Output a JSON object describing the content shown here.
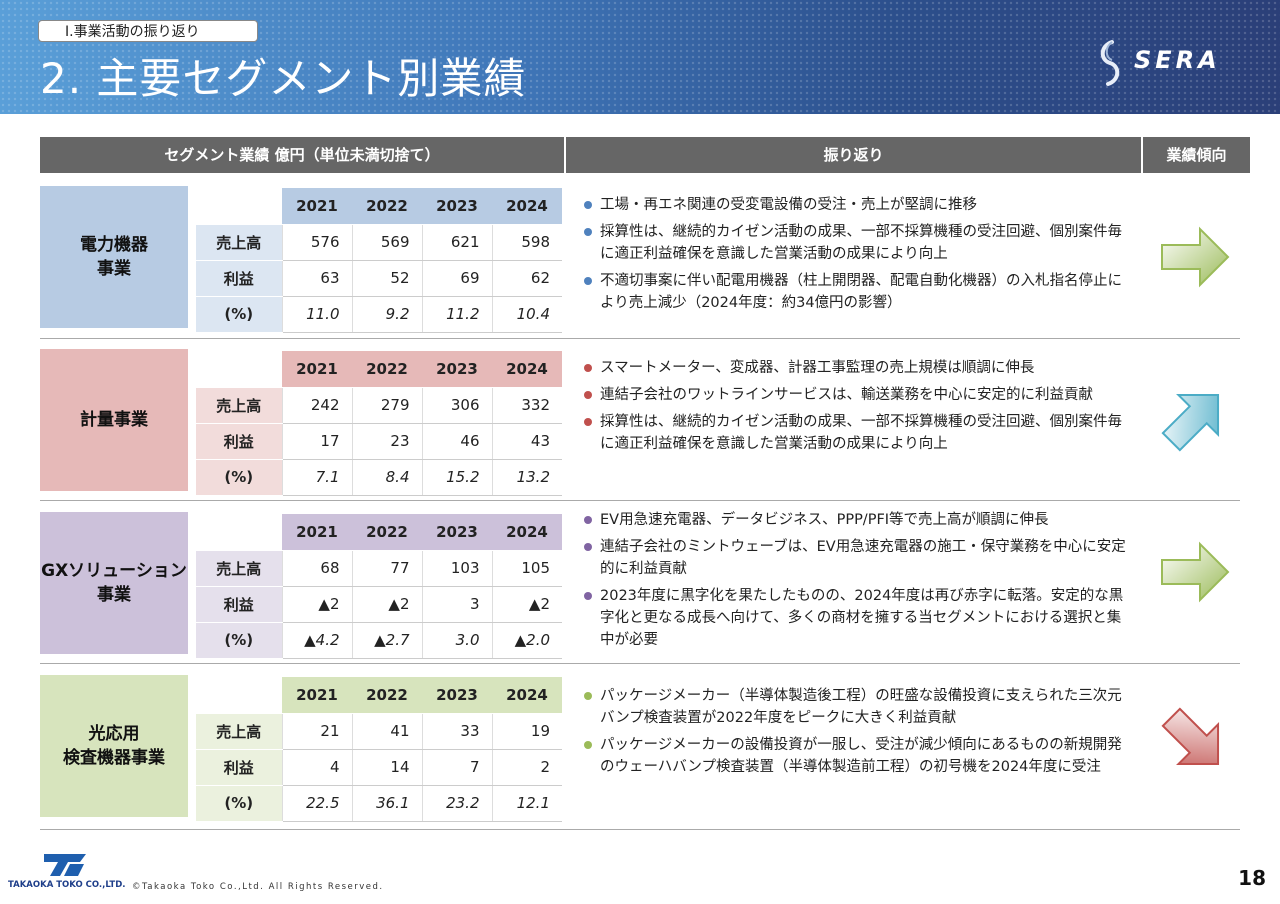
{
  "header": {
    "section_tag": "Ⅰ.事業活動の振り返り",
    "title": "2. 主要セグメント別業績",
    "logo_text": "SERA"
  },
  "table_headers": {
    "left": "セグメント業績 億円（単位未満切捨て）",
    "middle": "振り返り",
    "right": "業績傾向"
  },
  "years": [
    "2021",
    "2022",
    "2023",
    "2024"
  ],
  "row_labels": {
    "sales": "売上高",
    "profit": "利益",
    "pct": "(%)"
  },
  "segments": [
    {
      "name": "電力機器\n事業",
      "label_color": "#b7cbe3",
      "header_color": "#b7cbe3",
      "row_color": "#dce6f2",
      "sales": [
        "576",
        "569",
        "621",
        "598"
      ],
      "profit": [
        "63",
        "52",
        "69",
        "62"
      ],
      "pct": [
        "11.0",
        "9.2",
        "11.2",
        "10.4"
      ],
      "bullet_color": "#4f81bd",
      "bullets": [
        "工場・再エネ関連の受変電設備の受注・売上が堅調に推移",
        "採算性は、継続的カイゼン活動の成果、一部不採算機種の受注回避、個別案件毎に適正利益確保を意識した営業活動の成果により向上",
        "不適切事案に伴い配電用機器（柱上開閉器、配電自動化機器）の入札指名停止により売上減少（2024年度：約34億円の影響）"
      ],
      "trend": "flat",
      "arrow_icon": "right-arrow-icon",
      "arrow_color": "#9bbb59"
    },
    {
      "name": "計量事業",
      "label_color": "#e6b9b8",
      "header_color": "#e6b9b8",
      "row_color": "#f2dcdb",
      "sales": [
        "242",
        "279",
        "306",
        "332"
      ],
      "profit": [
        "17",
        "23",
        "46",
        "43"
      ],
      "pct": [
        "7.1",
        "8.4",
        "15.2",
        "13.2"
      ],
      "bullet_color": "#c0504d",
      "bullets": [
        "スマートメーター、変成器、計器工事監理の売上規模は順調に伸長",
        "連結子会社のワットラインサービスは、輸送業務を中心に安定的に利益貢献",
        "採算性は、継続的カイゼン活動の成果、一部不採算機種の受注回避、個別案件毎に適正利益確保を意識した営業活動の成果により向上"
      ],
      "trend": "up",
      "arrow_icon": "up-right-arrow-icon",
      "arrow_color": "#4bacc6"
    },
    {
      "name": "GXソリューション\n事業",
      "label_color": "#ccc1da",
      "header_color": "#ccc1da",
      "row_color": "#e5e0ec",
      "sales": [
        "68",
        "77",
        "103",
        "105"
      ],
      "profit": [
        "▲2",
        "▲2",
        "3",
        "▲2"
      ],
      "pct": [
        "▲4.2",
        "▲2.7",
        "3.0",
        "▲2.0"
      ],
      "bullet_color": "#8064a2",
      "bullets": [
        "EV用急速充電器、データビジネス、PPP/PFI等で売上高が順調に伸長",
        "連結子会社のミントウェーブは、EV用急速充電器の施工・保守業務を中心に安定的に利益貢献",
        "2023年度に黒字化を果たしたものの、2024年度は再び赤字に転落。安定的な黒字化と更なる成長へ向けて、多くの商材を擁する当セグメントにおける選択と集中が必要"
      ],
      "trend": "flat",
      "arrow_icon": "right-arrow-icon",
      "arrow_color": "#9bbb59"
    },
    {
      "name": "光応用\n検査機器事業",
      "label_color": "#d7e4bd",
      "header_color": "#d7e4bd",
      "row_color": "#ebf1de",
      "sales": [
        "21",
        "41",
        "33",
        "19"
      ],
      "profit": [
        "4",
        "14",
        "7",
        "2"
      ],
      "pct": [
        "22.5",
        "36.1",
        "23.2",
        "12.1"
      ],
      "bullet_color": "#9bbb59",
      "bullets": [
        "パッケージメーカー（半導体製造後工程）の旺盛な設備投資に支えられた三次元バンプ検査装置が2022年度をピークに大きく利益貢献",
        "パッケージメーカーの設備投資が一服し、受注が減少傾向にあるものの新規開発のウェーハバンプ検査装置（半導体製造前工程）の初号機を2024年度に受注"
      ],
      "trend": "down",
      "arrow_icon": "down-right-arrow-icon",
      "arrow_color": "#c0504d"
    }
  ],
  "footer": {
    "company": "TAKAOKA TOKO CO.,LTD.",
    "copyright": "©Takaoka Toko Co.,Ltd. All Rights Reserved.",
    "page": "18"
  }
}
